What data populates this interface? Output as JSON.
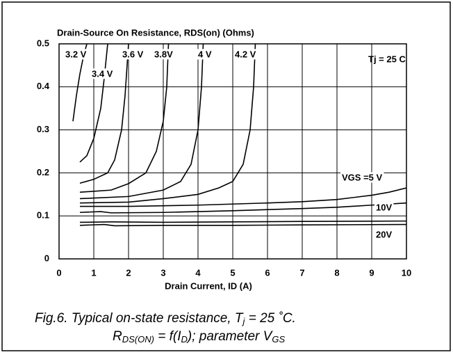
{
  "chart_data": {
    "type": "line",
    "title": "Drain-Source On Resistance, RDS(on) (Ohms)",
    "x_label": "Drain Current, ID (A)",
    "annotation": "Tj = 25 C",
    "xlim": [
      0,
      10
    ],
    "xticks": [
      0,
      1,
      2,
      3,
      4,
      5,
      6,
      7,
      8,
      9,
      10
    ],
    "ylim": [
      0,
      0.5
    ],
    "yticks": [
      {
        "value": 0,
        "label": "0"
      },
      0.1,
      0.2,
      0.3,
      0.4,
      0.5
    ],
    "grid": true,
    "series": [
      {
        "name": "3.2 V",
        "color": "#000000",
        "x": [
          0.4,
          0.5,
          0.6,
          0.7,
          0.8
        ],
        "values": [
          0.32,
          0.38,
          0.43,
          0.47,
          0.5
        ]
      },
      {
        "name": "3.4 V",
        "color": "#000000",
        "x": [
          0.6,
          0.8,
          1.0,
          1.2,
          1.3,
          1.4
        ],
        "values": [
          0.225,
          0.24,
          0.28,
          0.35,
          0.42,
          0.5
        ]
      },
      {
        "name": "3.6 V",
        "color": "#000000",
        "x": [
          0.6,
          1.0,
          1.4,
          1.6,
          1.8,
          1.9,
          2.0
        ],
        "values": [
          0.176,
          0.185,
          0.2,
          0.23,
          0.3,
          0.38,
          0.5
        ]
      },
      {
        "name": "3.8V",
        "color": "#000000",
        "x": [
          0.6,
          1.5,
          2.0,
          2.5,
          2.8,
          3.0,
          3.1,
          3.15
        ],
        "values": [
          0.155,
          0.16,
          0.175,
          0.2,
          0.25,
          0.32,
          0.4,
          0.5
        ]
      },
      {
        "name": "4 V",
        "color": "#000000",
        "x": [
          0.6,
          2.0,
          3.0,
          3.5,
          3.8,
          4.0,
          4.1,
          4.15
        ],
        "values": [
          0.14,
          0.145,
          0.16,
          0.18,
          0.22,
          0.3,
          0.4,
          0.5
        ]
      },
      {
        "name": "4.2 V",
        "color": "#000000",
        "x": [
          0.6,
          2.0,
          3.0,
          4.0,
          4.6,
          5.0,
          5.3,
          5.5,
          5.6,
          5.65
        ],
        "values": [
          0.13,
          0.132,
          0.14,
          0.15,
          0.165,
          0.18,
          0.22,
          0.3,
          0.4,
          0.5
        ]
      },
      {
        "name": "VGS =5 V",
        "color": "#000000",
        "x": [
          0.6,
          2.0,
          4.0,
          6.0,
          7.0,
          8.0,
          9.0,
          9.5,
          10.0
        ],
        "values": [
          0.122,
          0.122,
          0.125,
          0.13,
          0.133,
          0.138,
          0.148,
          0.155,
          0.165
        ]
      },
      {
        "name": "10V",
        "color": "#000000",
        "x": [
          0.6,
          1.2,
          1.5,
          3.0,
          5.0,
          7.0,
          8.0,
          9.0,
          10.0
        ],
        "values": [
          0.108,
          0.11,
          0.107,
          0.108,
          0.112,
          0.117,
          0.12,
          0.125,
          0.13
        ]
      },
      {
        "color": "#000000",
        "x": [
          0.6,
          1.5,
          3.0,
          5.0,
          7.0,
          10.0
        ],
        "values": [
          0.085,
          0.086,
          0.085,
          0.086,
          0.087,
          0.088
        ]
      },
      {
        "name": "20V",
        "color": "#000000",
        "x": [
          0.6,
          1.3,
          1.6,
          3.0,
          5.0,
          7.0,
          10.0
        ],
        "values": [
          0.078,
          0.08,
          0.077,
          0.078,
          0.078,
          0.079,
          0.08
        ]
      }
    ]
  },
  "caption": {
    "line1": [
      "Fig.6.   Typical on-state resistance, T",
      "j",
      " = 25 ˚C."
    ],
    "line2": [
      "R",
      "DS(ON)",
      " = f(I",
      "D",
      "); parameter V",
      "GS"
    ]
  }
}
